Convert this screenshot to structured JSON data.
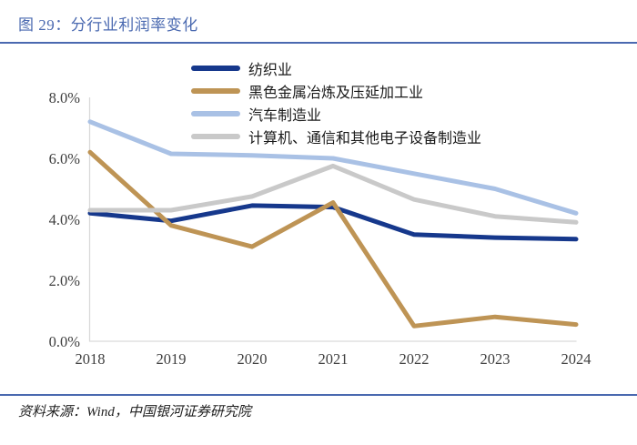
{
  "header": {
    "title": "图 29：分行业利润率变化"
  },
  "footer": {
    "source": "资料来源：Wind，中国银河证券研究院"
  },
  "colors": {
    "accent_blue": "#4A69B0",
    "axis_gray": "#D9D9D9",
    "tick_text": "#3F3F3F"
  },
  "chart_data": {
    "type": "line",
    "title": "图 29：分行业利润率变化",
    "categories": [
      "2018",
      "2019",
      "2020",
      "2021",
      "2022",
      "2023",
      "2024"
    ],
    "series": [
      {
        "name": "纺织业",
        "color": "#16388C",
        "values": [
          4.2,
          3.95,
          4.45,
          4.4,
          3.5,
          3.4,
          3.35
        ]
      },
      {
        "name": "黑色金属冶炼及压延加工业",
        "color": "#BE9455",
        "values": [
          6.2,
          3.8,
          3.1,
          4.55,
          0.5,
          0.8,
          0.55
        ]
      },
      {
        "name": "汽车制造业",
        "color": "#A9C1E5",
        "values": [
          7.2,
          6.15,
          6.1,
          6.0,
          5.5,
          5.0,
          4.2
        ]
      },
      {
        "name": "计算机、通信和其他电子设备制造业",
        "color": "#C9C9C9",
        "values": [
          4.3,
          4.3,
          4.75,
          5.75,
          4.65,
          4.1,
          3.9
        ]
      }
    ],
    "xlabel": "",
    "ylabel": "",
    "ylim": [
      0,
      8
    ],
    "ytick_labels": [
      "0.0%",
      "2.0%",
      "4.0%",
      "6.0%",
      "8.0%"
    ],
    "grid": false,
    "legend_position": "top-left-of-plot"
  }
}
